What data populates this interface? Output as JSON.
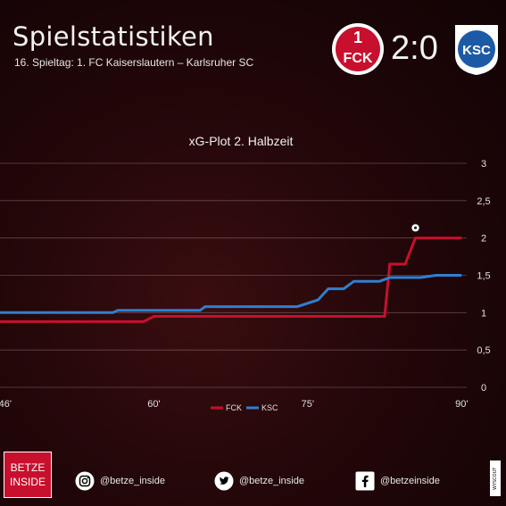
{
  "header": {
    "title": "Spielstatistiken",
    "subtitle": "16. Spieltag: 1. FC Kaiserslautern – Karlsruher SC",
    "score": "2:0",
    "home_logo_text": "1FCK",
    "away_logo_text": "KSC"
  },
  "chart_data": {
    "type": "line",
    "title": "xG-Plot 2. Halbzeit",
    "xlim": [
      45,
      90.5
    ],
    "ylim": [
      0,
      3
    ],
    "x_ticks": [
      {
        "value": 45.5,
        "label": "46'"
      },
      {
        "value": 60,
        "label": "60'"
      },
      {
        "value": 75,
        "label": "75'"
      },
      {
        "value": 90,
        "label": "90'"
      }
    ],
    "y_ticks": [
      {
        "value": 0,
        "label": "0"
      },
      {
        "value": 0.5,
        "label": "0,5"
      },
      {
        "value": 1,
        "label": "1"
      },
      {
        "value": 1.5,
        "label": "1,5"
      },
      {
        "value": 2,
        "label": "2"
      },
      {
        "value": 2.5,
        "label": "2,5"
      },
      {
        "value": 3,
        "label": "3"
      }
    ],
    "grid": true,
    "legend_position": "bottom-center",
    "series": [
      {
        "name": "FCK",
        "color": "#c8102e",
        "points": [
          [
            45,
            0.88
          ],
          [
            59,
            0.88
          ],
          [
            60,
            0.95
          ],
          [
            82.5,
            0.95
          ],
          [
            83,
            1.65
          ],
          [
            84.5,
            1.65
          ],
          [
            85.5,
            2.0
          ],
          [
            90,
            2.0
          ]
        ]
      },
      {
        "name": "KSC",
        "color": "#2f7fd1",
        "points": [
          [
            45,
            1.0
          ],
          [
            56,
            1.0
          ],
          [
            56.5,
            1.03
          ],
          [
            64.5,
            1.03
          ],
          [
            65,
            1.08
          ],
          [
            74,
            1.08
          ],
          [
            76,
            1.17
          ],
          [
            77,
            1.32
          ],
          [
            78.5,
            1.32
          ],
          [
            79.5,
            1.42
          ],
          [
            82,
            1.42
          ],
          [
            83,
            1.47
          ],
          [
            86,
            1.47
          ],
          [
            87.5,
            1.5
          ],
          [
            90,
            1.5
          ]
        ]
      }
    ],
    "annotations": [
      {
        "type": "goal-ball-icon",
        "x": 85.5,
        "y": 2.1
      }
    ]
  },
  "footer": {
    "brand_line1": "BETZE",
    "brand_line2": "INSIDE",
    "instagram": "@betze_inside",
    "twitter": "@betze_inside",
    "facebook": "@betzeinside",
    "watermark": "WYSCOUT"
  }
}
